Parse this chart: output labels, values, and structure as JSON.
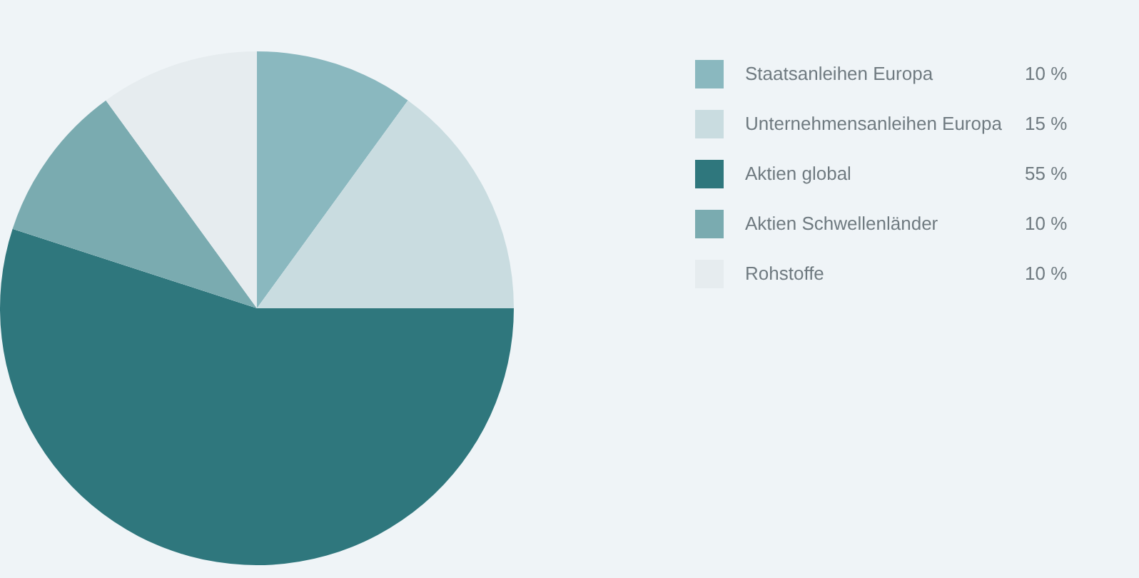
{
  "chart_data": {
    "type": "pie",
    "categories": [
      "Staatsanleihen Europa",
      "Unternehmensanleihen Europa",
      "Aktien global",
      "Aktien Schwellenländer",
      "Rohstoffe"
    ],
    "values": [
      10,
      15,
      55,
      10,
      10
    ],
    "colors": [
      "#8ab8bf",
      "#c9dce0",
      "#2f777d",
      "#7aabb0",
      "#e6ecef"
    ],
    "value_labels": [
      "10 %",
      "15 %",
      "55 %",
      "10 %",
      "10 %"
    ],
    "legend": "right"
  }
}
